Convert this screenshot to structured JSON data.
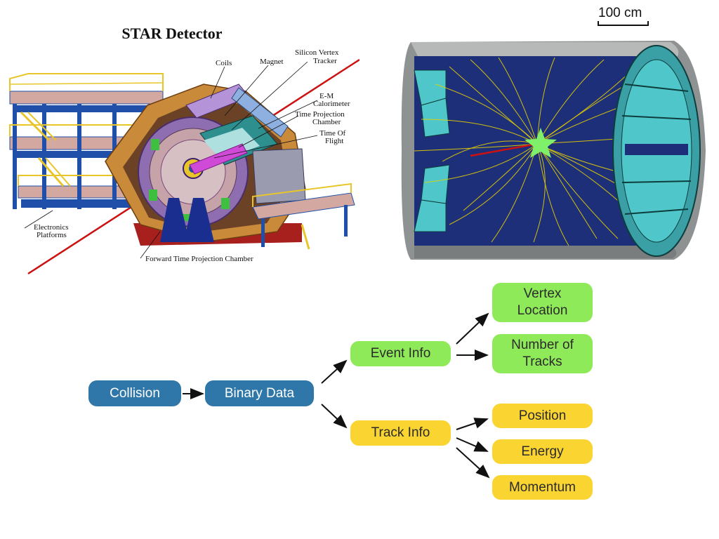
{
  "detector_figure": {
    "title": "STAR Detector",
    "labels": {
      "coils": "Coils",
      "magnet": "Magnet",
      "svt_line1": "Silicon Vertex",
      "svt_line2": "Tracker",
      "emc_line1": "E-M",
      "emc_line2": "Calorimeter",
      "tpc_line1": "Time Projection",
      "tpc_line2": "Chamber",
      "tof_line1": "Time Of",
      "tof_line2": "Flight",
      "elec_line1": "Electronics",
      "elec_line2": "Platforms",
      "ftpc": "Forward Time Projection Chamber"
    },
    "colors": {
      "frame": "#c98a3a",
      "platform": "#1f4fa8",
      "railing": "#e8c62a",
      "beam": "#cc1111",
      "magnet": "#9b7bc4",
      "base": "#a8201e"
    }
  },
  "event_display": {
    "scale_label": "100 cm",
    "colors": {
      "barrel": "#2a3a8c",
      "endcap": "#4fc6c9",
      "shell": "#a9acab",
      "tracks": "#e6d000",
      "vertex": "#7ff06a"
    }
  },
  "flow": {
    "collision": "Collision",
    "binary_data": "Binary Data",
    "event_info": "Event Info",
    "track_info": "Track Info",
    "vertex_line1": "Vertex",
    "vertex_line2": "Location",
    "tracks_line1": "Number of",
    "tracks_line2": "Tracks",
    "position": "Position",
    "energy": "Energy",
    "momentum": "Momentum",
    "colors": {
      "blue": "#2f77a9",
      "green": "#8fea5a",
      "yellow": "#fad430"
    }
  }
}
